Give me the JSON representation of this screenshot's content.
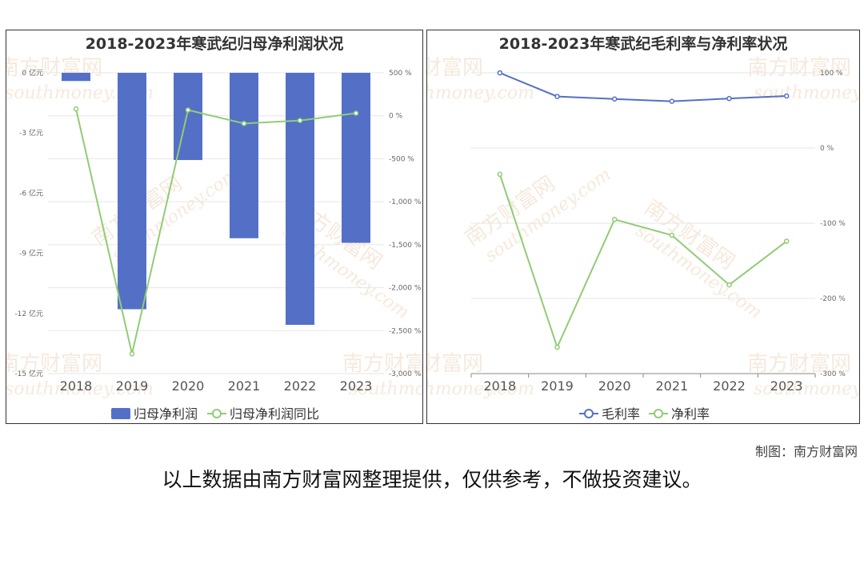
{
  "credit": "制图：南方财富网",
  "disclaimer": "以上数据由南方财富网整理提供，仅供参考，不做投资建议。",
  "watermark": {
    "cn": "南方财富网",
    "en": "southmoney.com"
  },
  "colors": {
    "bar": "#5470c6",
    "green": "#91cc75",
    "blue": "#5470c6",
    "grid": "#e6e6e6",
    "axis": "#666666"
  },
  "chart_data": [
    {
      "type": "bar",
      "title": "2018-2023年寒武纪归母净利润状况",
      "categories": [
        "2018",
        "2019",
        "2020",
        "2021",
        "2022",
        "2023"
      ],
      "series": [
        {
          "name": "归母净利润",
          "type": "bar",
          "axis": "left",
          "values": [
            -0.41,
            -11.79,
            -4.35,
            -8.25,
            -12.57,
            -8.48
          ]
        },
        {
          "name": "归母净利润同比",
          "type": "line",
          "axis": "right",
          "values": [
            80,
            -2770,
            67,
            -90,
            -55,
            30
          ]
        }
      ],
      "y_left": {
        "min": -15,
        "max": 0,
        "step": 3,
        "tick_labels": [
          "0 亿元",
          "-3 亿元",
          "-6 亿元",
          "-9 亿元",
          "-12 亿元",
          "-15 亿元"
        ]
      },
      "y_right": {
        "min": -3000,
        "max": 500,
        "step": 500,
        "tick_labels": [
          "500 %",
          "0 %",
          "-500 %",
          "-1,000 %",
          "-1,500 %",
          "-2,000 %",
          "-2,500 %",
          "-3,000 %"
        ]
      },
      "legend": "bottom"
    },
    {
      "type": "line",
      "title": "2018-2023年寒武纪毛利率与净利率状况",
      "categories": [
        "2018",
        "2019",
        "2020",
        "2021",
        "2022",
        "2023"
      ],
      "series": [
        {
          "name": "毛利率",
          "values": [
            99.9,
            68.5,
            65.2,
            62.1,
            65.8,
            69.2
          ]
        },
        {
          "name": "净利率",
          "values": [
            -35,
            -265,
            -95,
            -116,
            -182,
            -124
          ]
        }
      ],
      "y_right": {
        "min": -300,
        "max": 100,
        "step": 100,
        "tick_labels": [
          "100 %",
          "0 %",
          "-100 %",
          "-200 %",
          "-300 %"
        ]
      },
      "legend": "bottom"
    }
  ]
}
